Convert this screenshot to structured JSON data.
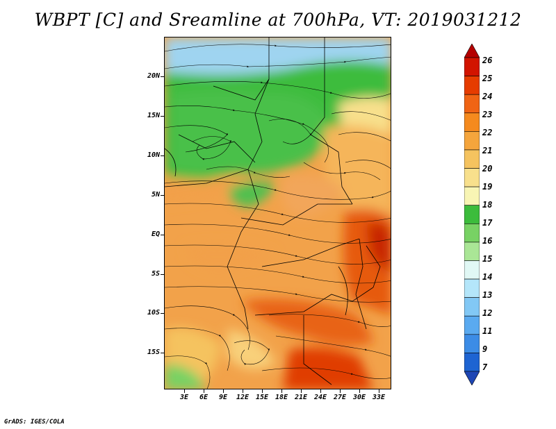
{
  "title": "WBPT [C] and Sreamline at 700hPa, VT: 2019031212",
  "credit": "GrADS: IGES/COLA",
  "lat_labels": [
    "20N",
    "15N",
    "10N",
    "5N",
    "EQ",
    "5S",
    "10S",
    "15S"
  ],
  "lon_labels": [
    "3E",
    "6E",
    "9E",
    "12E",
    "15E",
    "18E",
    "21E",
    "24E",
    "27E",
    "30E",
    "33E"
  ],
  "colorbar": {
    "labels": [
      "26",
      "25",
      "24",
      "23",
      "22",
      "21",
      "20",
      "19",
      "18",
      "17",
      "16",
      "15",
      "14",
      "13",
      "12",
      "11",
      "9",
      "7"
    ],
    "colors": [
      "#b40000",
      "#d21400",
      "#e63c00",
      "#f06414",
      "#f58a1e",
      "#f5a53c",
      "#f5c35f",
      "#f8e08c",
      "#f8f5b4",
      "#3cbc3c",
      "#78d264",
      "#aae696",
      "#e1f8f5",
      "#b4e6fa",
      "#82c8f5",
      "#5aaaf0",
      "#3c8ce6",
      "#1e64d2",
      "#1e46b4"
    ]
  }
}
